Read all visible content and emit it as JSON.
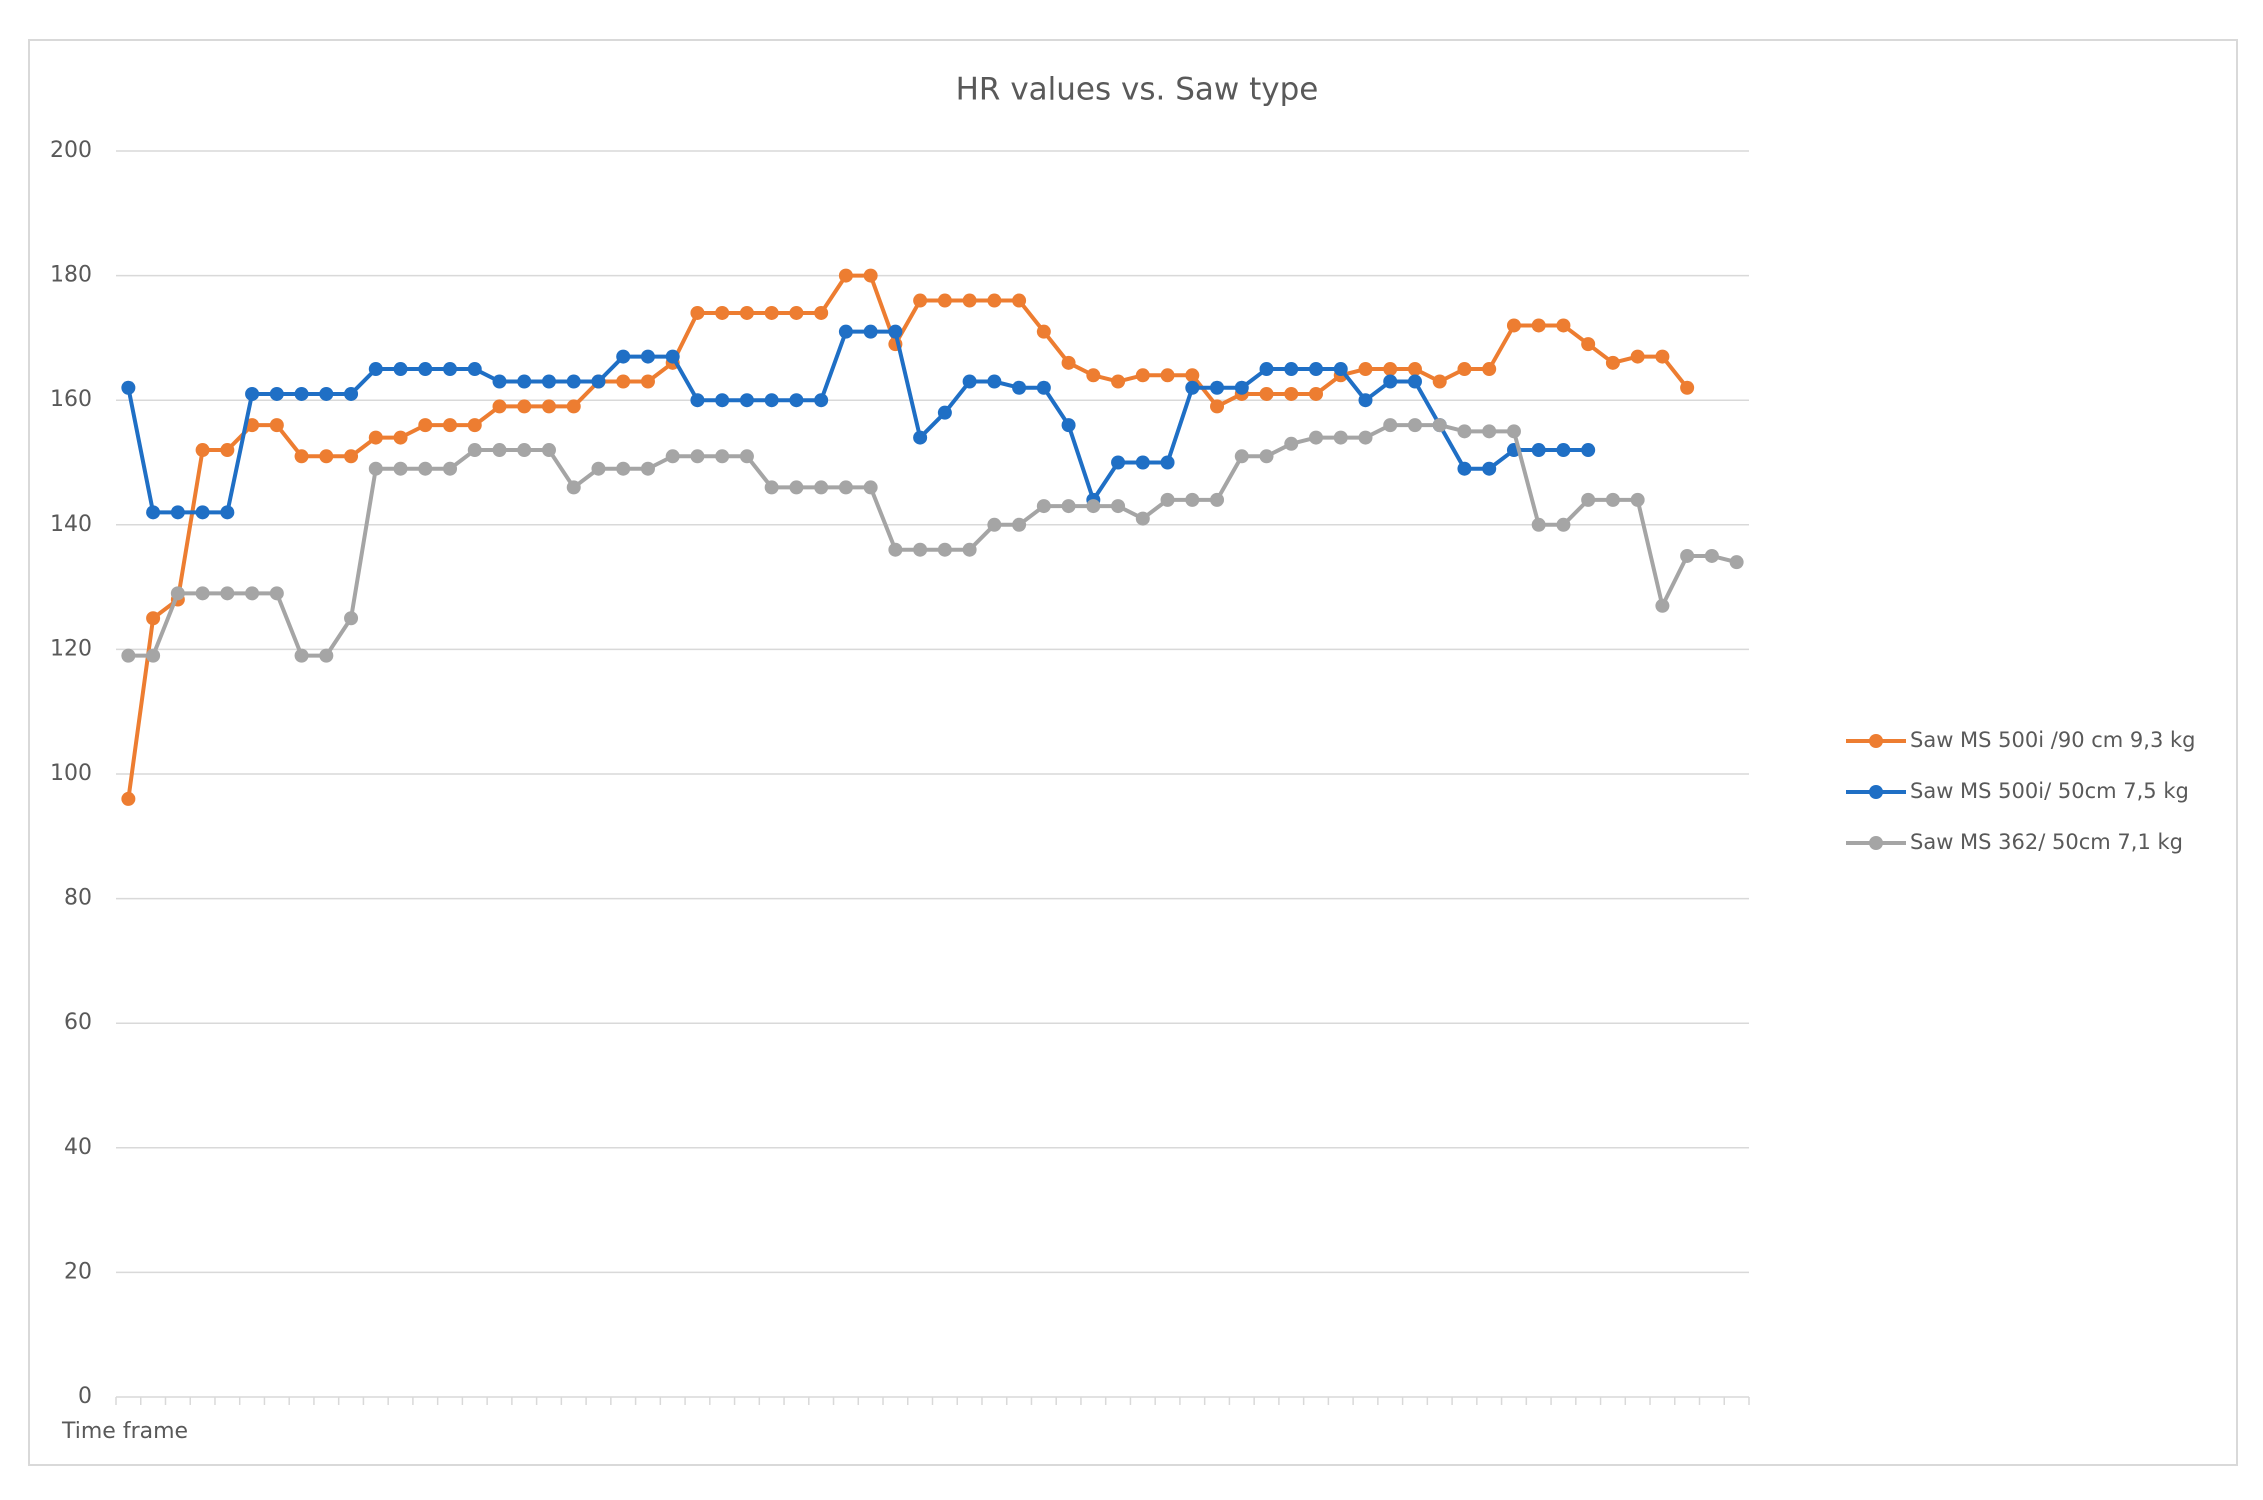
{
  "chart_data": {
    "type": "line",
    "title": "HR values vs. Saw type",
    "x_label": "Time frame",
    "categories": [
      null,
      null,
      null,
      null,
      null,
      null,
      null,
      null,
      null,
      null,
      null,
      null,
      null,
      null,
      null,
      null,
      null,
      null,
      null,
      null,
      null,
      null,
      null,
      null,
      null,
      null,
      null,
      null,
      null,
      null,
      null,
      null,
      null,
      null,
      null,
      null,
      null,
      null,
      null,
      null,
      null,
      null,
      null,
      null,
      null,
      null,
      null,
      null,
      null,
      null,
      null,
      null,
      null,
      null,
      null,
      null,
      null,
      null,
      null,
      null,
      null,
      null,
      null,
      null,
      null,
      null
    ],
    "series": [
      {
        "name": "Saw MS 500i /90 cm 9,3 kg",
        "color": "#ed7d31",
        "values": [
          96,
          125,
          128,
          152,
          152,
          156,
          156,
          151,
          151,
          151,
          154,
          154,
          156,
          156,
          156,
          159,
          159,
          159,
          159,
          163,
          163,
          163,
          166,
          174,
          174,
          174,
          174,
          174,
          174,
          180,
          180,
          169,
          176,
          176,
          176,
          176,
          176,
          171,
          166,
          164,
          163,
          164,
          164,
          164,
          159,
          161,
          161,
          161,
          161,
          164,
          165,
          165,
          165,
          163,
          165,
          165,
          172,
          172,
          172,
          169,
          166,
          167,
          167,
          162,
          null,
          null
        ]
      },
      {
        "name": "Saw MS 500i/ 50cm 7,5 kg",
        "color": "#1f6fc5",
        "values": [
          162,
          142,
          142,
          142,
          142,
          161,
          161,
          161,
          161,
          161,
          165,
          165,
          165,
          165,
          165,
          163,
          163,
          163,
          163,
          163,
          167,
          167,
          167,
          160,
          160,
          160,
          160,
          160,
          160,
          171,
          171,
          171,
          154,
          158,
          163,
          163,
          162,
          162,
          156,
          144,
          150,
          150,
          150,
          162,
          162,
          162,
          165,
          165,
          165,
          165,
          160,
          163,
          163,
          156,
          149,
          149,
          152,
          152,
          152,
          152,
          null,
          null,
          null,
          null,
          null,
          null
        ]
      },
      {
        "name": "Saw MS 362/ 50cm 7,1 kg",
        "color": "#a5a5a5",
        "values": [
          119,
          119,
          129,
          129,
          129,
          129,
          129,
          119,
          119,
          125,
          149,
          149,
          149,
          149,
          152,
          152,
          152,
          152,
          146,
          149,
          149,
          149,
          151,
          151,
          151,
          151,
          146,
          146,
          146,
          146,
          146,
          136,
          136,
          136,
          136,
          140,
          140,
          143,
          143,
          143,
          143,
          141,
          144,
          144,
          144,
          151,
          151,
          153,
          154,
          154,
          154,
          156,
          156,
          156,
          155,
          155,
          155,
          140,
          140,
          144,
          144,
          144,
          127,
          135,
          135,
          134
        ]
      }
    ],
    "ylim": [
      0,
      200
    ],
    "yticks": [
      0,
      20,
      40,
      60,
      80,
      100,
      120,
      140,
      160,
      180,
      200
    ],
    "grid": true,
    "legend": "right"
  }
}
